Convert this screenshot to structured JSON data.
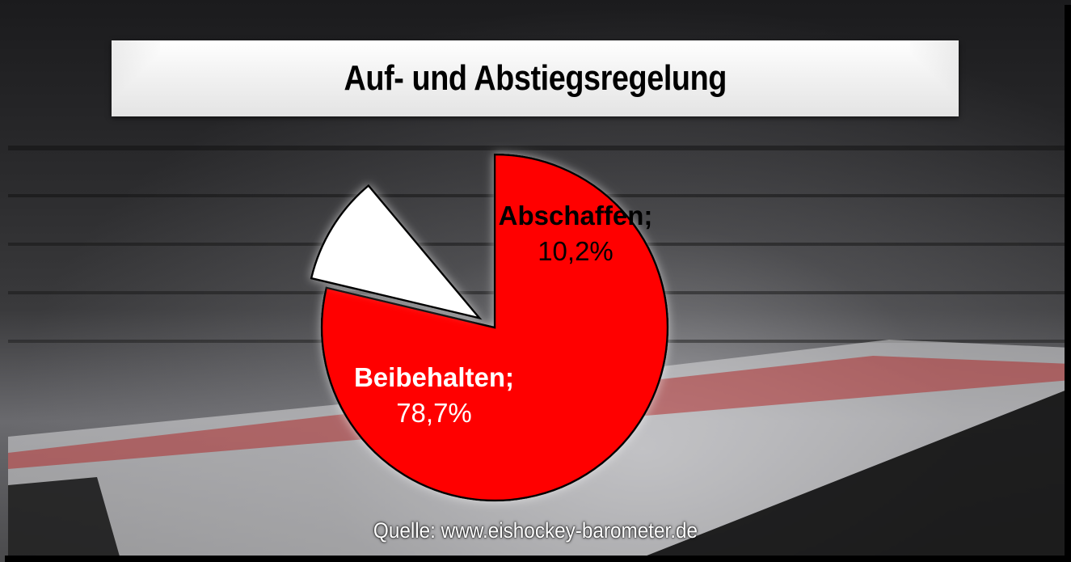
{
  "chart_data": {
    "type": "pie",
    "title": "Auf- und Abstiegsregelung",
    "slices": [
      {
        "label": "Beibehalten",
        "value": 78.7,
        "value_label": "78,7%",
        "color": "#ff0000",
        "text_color": "#ffffff"
      },
      {
        "label": "Abschaffen",
        "value": 10.2,
        "value_label": "10,2%",
        "color": "#ffffff",
        "text_color": "#000000"
      }
    ],
    "start_angle_deg": 0,
    "direction": "clockwise",
    "exploded": "Abschaffen",
    "legend": "none"
  },
  "source": "Quelle: www.eishockey-barometer.de",
  "colors": {
    "title_banner": "#f2f2f2",
    "title_text": "#000000",
    "slice_outline": "#000000"
  }
}
